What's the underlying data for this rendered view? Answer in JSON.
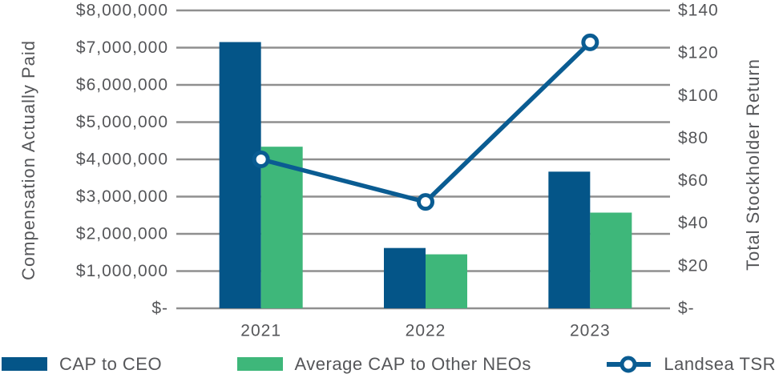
{
  "chart_data": {
    "type": "bar",
    "subtype": "grouped-bars-with-line-overlay",
    "title": "",
    "categories": [
      "2021",
      "2022",
      "2023"
    ],
    "bar_series": [
      {
        "name": "CAP to CEO",
        "color": "#045588",
        "values": [
          7150000,
          1620000,
          3670000
        ]
      },
      {
        "name": "Average CAP to Other NEOs",
        "color": "#3eb77a",
        "values": [
          4340000,
          1450000,
          2570000
        ]
      }
    ],
    "line_series": {
      "name": "Landsea TSR",
      "color": "#0a5c92",
      "marker": "open-circle",
      "axis": "right",
      "values": [
        70,
        50,
        125
      ]
    },
    "left_axis": {
      "title": "Compensation Actually Paid",
      "min": 0,
      "max": 8000000,
      "step": 1000000,
      "tick_labels_top_to_bottom": [
        "$8,000,000",
        "$7,000,000",
        "$6,000,000",
        "$5,000,000",
        "$4,000,000",
        "$3,000,000",
        "$2,000,000",
        "$1,000,000",
        "$-"
      ]
    },
    "right_axis": {
      "title": "Total Stockholder Return",
      "min": 0,
      "max": 140,
      "step": 20,
      "tick_labels_top_to_bottom": [
        "$140",
        "$120",
        "$100",
        "$80",
        "$60",
        "$40",
        "$20",
        "$-"
      ]
    },
    "grid": true,
    "legend_position": "bottom"
  },
  "colors": {
    "bar_blue": "#045588",
    "bar_green": "#3eb77a",
    "line_blue": "#0a5c92",
    "gridline": "#8f8f8f",
    "text": "#555659",
    "background": "#ffffff"
  }
}
